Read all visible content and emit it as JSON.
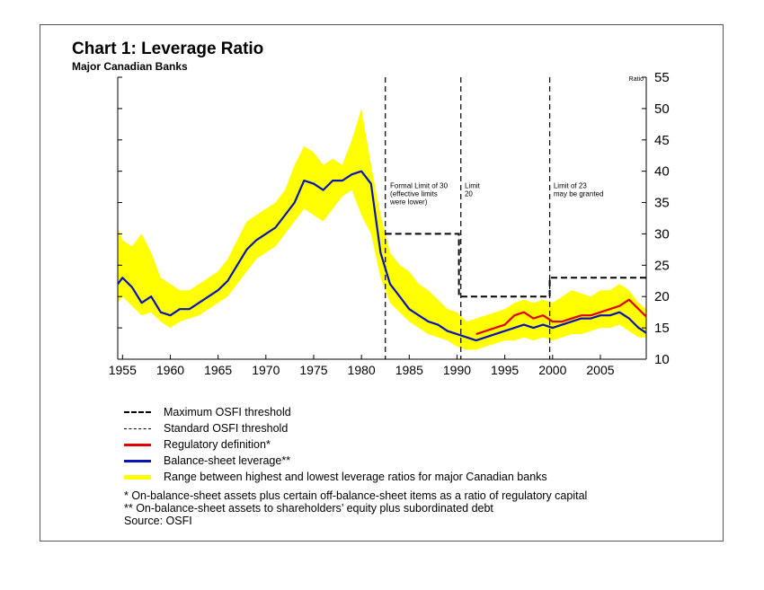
{
  "chart_data": {
    "type": "line",
    "title": "Chart 1: Leverage Ratio",
    "subtitle": "Major Canadian Banks",
    "ylabel": "Ratio",
    "xlim": [
      1954.5,
      2009.8
    ],
    "ylim": [
      10,
      55
    ],
    "x_ticks": [
      "1955",
      "1960",
      "1965",
      "1970",
      "1975",
      "1980",
      "1985",
      "1990",
      "1995",
      "2000",
      "2005"
    ],
    "y_ticks": [
      "10",
      "15",
      "20",
      "25",
      "30",
      "35",
      "40",
      "45",
      "50",
      "55"
    ],
    "series": [
      {
        "name": "Balance-sheet leverage**",
        "color": "#0a14b4",
        "points": [
          [
            1954.5,
            22
          ],
          [
            1955,
            23
          ],
          [
            1956,
            21.5
          ],
          [
            1957,
            19
          ],
          [
            1958,
            20
          ],
          [
            1959,
            17.5
          ],
          [
            1960,
            17
          ],
          [
            1961,
            18
          ],
          [
            1962,
            18
          ],
          [
            1963,
            19
          ],
          [
            1964,
            20
          ],
          [
            1965,
            21
          ],
          [
            1966,
            22.5
          ],
          [
            1967,
            25
          ],
          [
            1968,
            27.5
          ],
          [
            1969,
            29
          ],
          [
            1970,
            30
          ],
          [
            1971,
            31
          ],
          [
            1972,
            33
          ],
          [
            1973,
            35
          ],
          [
            1974,
            38.5
          ],
          [
            1975,
            38
          ],
          [
            1976,
            37
          ],
          [
            1977,
            38.5
          ],
          [
            1978,
            38.5
          ],
          [
            1979,
            39.5
          ],
          [
            1980,
            40
          ],
          [
            1981,
            38
          ],
          [
            1982,
            27
          ],
          [
            1983,
            22
          ],
          [
            1984,
            20
          ],
          [
            1985,
            18
          ],
          [
            1986,
            17
          ],
          [
            1987,
            16
          ],
          [
            1988,
            15.5
          ],
          [
            1989,
            14.5
          ],
          [
            1990,
            14
          ],
          [
            1991,
            13.5
          ],
          [
            1992,
            13
          ],
          [
            1993,
            13.5
          ],
          [
            1994,
            14
          ],
          [
            1995,
            14.5
          ],
          [
            1996,
            15
          ],
          [
            1997,
            15.5
          ],
          [
            1998,
            15
          ],
          [
            1999,
            15.5
          ],
          [
            2000,
            15
          ],
          [
            2001,
            15.5
          ],
          [
            2002,
            16
          ],
          [
            2003,
            16.5
          ],
          [
            2004,
            16.5
          ],
          [
            2005,
            17
          ],
          [
            2006,
            17
          ],
          [
            2007,
            17.5
          ],
          [
            2008,
            16.5
          ],
          [
            2009,
            15
          ],
          [
            2009.8,
            14.2
          ]
        ]
      },
      {
        "name": "Regulatory definition*",
        "color": "#e00000",
        "points": [
          [
            1992,
            14
          ],
          [
            1993,
            14.5
          ],
          [
            1994,
            15
          ],
          [
            1995,
            15.5
          ],
          [
            1996,
            17
          ],
          [
            1997,
            17.5
          ],
          [
            1998,
            16.5
          ],
          [
            1999,
            17
          ],
          [
            2000,
            16
          ],
          [
            2001,
            16
          ],
          [
            2002,
            16.5
          ],
          [
            2003,
            17
          ],
          [
            2004,
            17
          ],
          [
            2005,
            17.5
          ],
          [
            2006,
            18
          ],
          [
            2007,
            18.5
          ],
          [
            2008,
            19.5
          ],
          [
            2009,
            18
          ],
          [
            2009.8,
            16.8
          ]
        ]
      }
    ],
    "range": {
      "name": "Range between highest and lowest leverage ratios for major Canadian banks",
      "color": "#ffff00",
      "upper": [
        [
          1954.5,
          31
        ],
        [
          1955,
          29
        ],
        [
          1956,
          28
        ],
        [
          1957,
          30
        ],
        [
          1958,
          27
        ],
        [
          1959,
          23
        ],
        [
          1960,
          22
        ],
        [
          1961,
          21
        ],
        [
          1962,
          21
        ],
        [
          1963,
          22
        ],
        [
          1964,
          23
        ],
        [
          1965,
          24
        ],
        [
          1966,
          26
        ],
        [
          1967,
          29
        ],
        [
          1968,
          32
        ],
        [
          1969,
          33
        ],
        [
          1970,
          34
        ],
        [
          1971,
          35
        ],
        [
          1972,
          37
        ],
        [
          1973,
          41
        ],
        [
          1974,
          44
        ],
        [
          1975,
          43
        ],
        [
          1976,
          41
        ],
        [
          1977,
          42
        ],
        [
          1978,
          41
        ],
        [
          1979,
          45
        ],
        [
          1980,
          50
        ],
        [
          1981,
          41
        ],
        [
          1982,
          33
        ],
        [
          1983,
          27
        ],
        [
          1984,
          25
        ],
        [
          1985,
          24
        ],
        [
          1986,
          22
        ],
        [
          1987,
          21
        ],
        [
          1988,
          19.5
        ],
        [
          1989,
          18
        ],
        [
          1990,
          17.5
        ],
        [
          1991,
          16
        ],
        [
          1992,
          16.5
        ],
        [
          1993,
          17
        ],
        [
          1994,
          17.5
        ],
        [
          1995,
          18
        ],
        [
          1996,
          19
        ],
        [
          1997,
          19.5
        ],
        [
          1998,
          19
        ],
        [
          1999,
          19.5
        ],
        [
          2000,
          19
        ],
        [
          2001,
          20
        ],
        [
          2002,
          21
        ],
        [
          2003,
          20.5
        ],
        [
          2004,
          20
        ],
        [
          2005,
          21
        ],
        [
          2006,
          21
        ],
        [
          2007,
          22
        ],
        [
          2008,
          21
        ],
        [
          2009,
          19
        ],
        [
          2009.8,
          18
        ]
      ],
      "lower": [
        [
          1954.5,
          19
        ],
        [
          1955,
          20
        ],
        [
          1956,
          18.5
        ],
        [
          1957,
          17
        ],
        [
          1958,
          17.5
        ],
        [
          1959,
          16
        ],
        [
          1960,
          15
        ],
        [
          1961,
          16
        ],
        [
          1962,
          16.5
        ],
        [
          1963,
          17
        ],
        [
          1964,
          18
        ],
        [
          1965,
          19
        ],
        [
          1966,
          20
        ],
        [
          1967,
          22
        ],
        [
          1968,
          24
        ],
        [
          1969,
          26
        ],
        [
          1970,
          27
        ],
        [
          1971,
          28
        ],
        [
          1972,
          30
        ],
        [
          1973,
          32
        ],
        [
          1974,
          34
        ],
        [
          1975,
          33
        ],
        [
          1976,
          32
        ],
        [
          1977,
          34
        ],
        [
          1978,
          36
        ],
        [
          1979,
          37
        ],
        [
          1980,
          33
        ],
        [
          1981,
          30
        ],
        [
          1982,
          23
        ],
        [
          1983,
          19
        ],
        [
          1984,
          17.5
        ],
        [
          1985,
          16
        ],
        [
          1986,
          15
        ],
        [
          1987,
          14
        ],
        [
          1988,
          13.5
        ],
        [
          1989,
          13
        ],
        [
          1990,
          12
        ],
        [
          1991,
          11.5
        ],
        [
          1992,
          11.5
        ],
        [
          1993,
          12
        ],
        [
          1994,
          12.5
        ],
        [
          1995,
          13
        ],
        [
          1996,
          13
        ],
        [
          1997,
          13.5
        ],
        [
          1998,
          13
        ],
        [
          1999,
          13.5
        ],
        [
          2000,
          13
        ],
        [
          2001,
          13.5
        ],
        [
          2002,
          14
        ],
        [
          2003,
          14
        ],
        [
          2004,
          14.5
        ],
        [
          2005,
          15
        ],
        [
          2006,
          15
        ],
        [
          2007,
          15.5
        ],
        [
          2008,
          14.5
        ],
        [
          2009,
          13.5
        ],
        [
          2009.8,
          13.5
        ]
      ]
    },
    "thresholds": {
      "maximum": {
        "name": "Maximum OSFI threshold",
        "segments": [
          [
            [
              1982.5,
              30
            ],
            [
              1990.2,
              30
            ],
            [
              1990.2,
              20
            ],
            [
              1999.7,
              20
            ],
            [
              1999.7,
              23
            ],
            [
              2009.8,
              23
            ]
          ]
        ]
      },
      "vertical_lines": [
        1982.5,
        1990.4,
        1999.7
      ]
    },
    "annotations": [
      {
        "x": 1983,
        "y": 37.3,
        "lines": [
          "Formal Limit of 30",
          "(effective limits",
          "were lower)"
        ]
      },
      {
        "x": 1990.8,
        "y": 37.3,
        "lines": [
          "Limit",
          "20"
        ]
      },
      {
        "x": 2000.1,
        "y": 37.3,
        "lines": [
          "Limit of 23",
          "may be granted"
        ]
      }
    ]
  },
  "legend": [
    {
      "label": "Maximum OSFI threshold",
      "style": "max"
    },
    {
      "label": "Standard OSFI threshold",
      "style": "std"
    },
    {
      "label": "Regulatory definition*",
      "style": "reg"
    },
    {
      "label": "Balance-sheet leverage**",
      "style": "bal"
    },
    {
      "label": "Range between highest and lowest leverage ratios for major Canadian banks",
      "style": "range"
    }
  ],
  "notes": [
    "* On-balance-sheet assets plus certain off-balance-sheet items as a ratio of regulatory capital",
    "** On-balance-sheet assets to shareholders’ equity plus subordinated debt",
    "Source: OSFI"
  ]
}
